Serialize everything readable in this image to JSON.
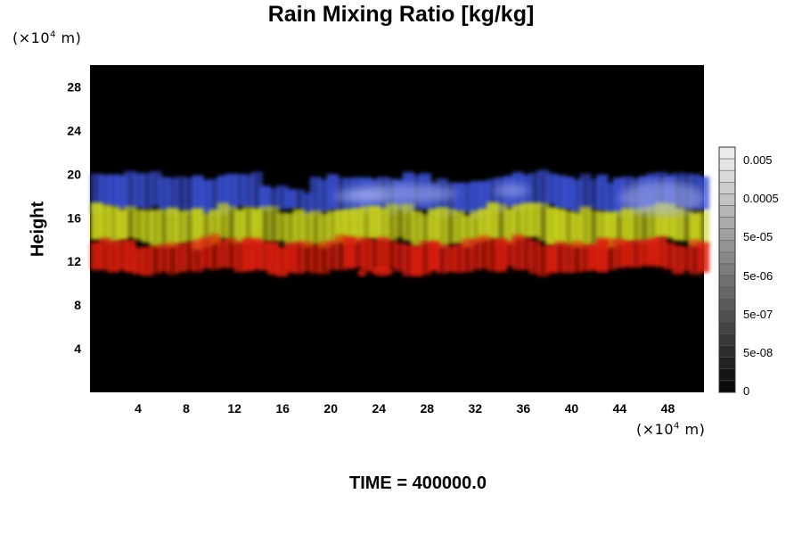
{
  "title": "Rain Mixing Ratio [kg/kg]",
  "y_unit": {
    "prefix": "(×10",
    "exp": "4",
    "suffix": " m)"
  },
  "x_unit": {
    "prefix": "(×10",
    "exp": "4",
    "suffix": " m)"
  },
  "ylabel": "Height",
  "time_label": "TIME = 400000.0",
  "colors": {
    "plot_background": "#000000",
    "blue_layer": "#3a4fd0",
    "light_blue_highlight": "#aab4f0",
    "yellow_layer": "#c8d21e",
    "red_layer": "#dc1e0a"
  },
  "chart_data": {
    "type": "heatmap",
    "title": "Rain Mixing Ratio [kg/kg]",
    "xlabel": "",
    "ylabel": "Height",
    "xlim": [
      0,
      51
    ],
    "ylim": [
      0,
      30
    ],
    "x_ticks": [
      "4",
      "8",
      "12",
      "16",
      "20",
      "24",
      "28",
      "32",
      "36",
      "40",
      "44",
      "48"
    ],
    "y_ticks": [
      "4",
      "8",
      "12",
      "16",
      "20",
      "24",
      "28"
    ],
    "colorbar": {
      "labels": [
        "0",
        "5e-08",
        "5e-07",
        "5e-06",
        "5e-05",
        "0.0005",
        "0.005"
      ],
      "levels": 21
    },
    "layers": [
      {
        "color": "blue",
        "y_range": [
          16.5,
          20
        ]
      },
      {
        "color": "yellow",
        "y_range": [
          13.5,
          17
        ]
      },
      {
        "color": "red",
        "y_range": [
          11,
          14
        ]
      }
    ]
  }
}
